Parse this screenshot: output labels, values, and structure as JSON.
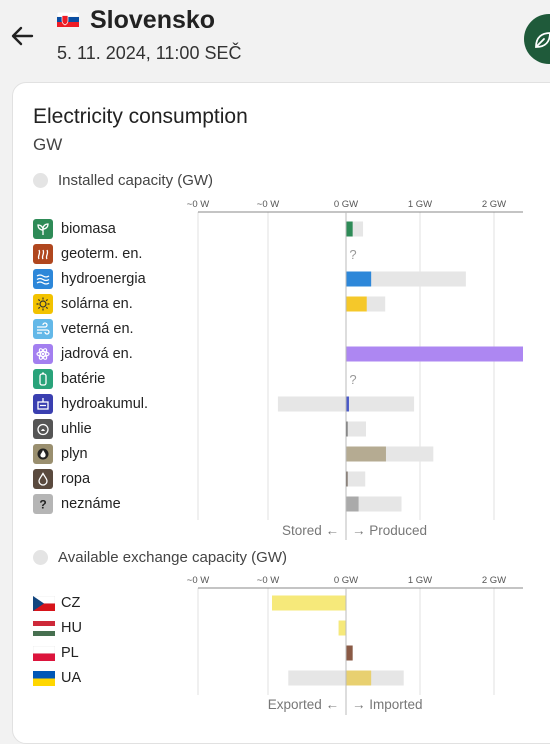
{
  "header": {
    "zone_name": "Slovensko",
    "datetime": "5. 11. 2024, 11:00 SEČ"
  },
  "panel": {
    "title": "Electricity consumption",
    "unit": "GW"
  },
  "production": {
    "section_label": "Installed capacity (GW)",
    "ticks": [
      "~0 W",
      "~0 W",
      "0 GW",
      "1 GW",
      "2 GW"
    ],
    "tick_values": [
      -1,
      -0.5,
      0,
      1,
      2
    ],
    "left_caption": "Stored ←",
    "right_caption": "→ Produced",
    "unknown_mark": "?",
    "rows": [
      {
        "label": "biomasa",
        "icon": "leaf-icon",
        "icon_color": "#2e8b57",
        "bar_color": "#2e8b57",
        "value": 0.09,
        "capacity": 0.23
      },
      {
        "label": "geoterm. en.",
        "icon": "geothermal-icon",
        "icon_color": "#b0471f",
        "bar_color": "#b0471f",
        "value": null,
        "capacity": null
      },
      {
        "label": "hydroenergia",
        "icon": "water-waves-icon",
        "icon_color": "#2d87d9",
        "bar_color": "#2d87d9",
        "value": 0.34,
        "capacity": 1.62
      },
      {
        "label": "solárna en.",
        "icon": "sun-icon",
        "icon_color": "#f2c200",
        "bar_color": "#f5c82a",
        "value": 0.28,
        "capacity": 0.53
      },
      {
        "label": "veterná en.",
        "icon": "wind-icon",
        "icon_color": "#63b8e8",
        "bar_color": "#63b8e8",
        "value": 0,
        "capacity": 0
      },
      {
        "label": "jadrová en.",
        "icon": "atom-icon",
        "icon_color": "#a37ff0",
        "bar_color": "#ad87f2",
        "value": 2.4,
        "capacity": 2.4
      },
      {
        "label": "batérie",
        "icon": "battery-icon",
        "icon_color": "#29a37a",
        "bar_color": "#29a37a",
        "value": null,
        "capacity": null
      },
      {
        "label": "hydroakumul.",
        "icon": "pumped-storage-icon",
        "icon_color": "#3a3fb0",
        "bar_color": "#4a59c7",
        "value": 0.04,
        "capacity": 0.92,
        "storage": 0.92
      },
      {
        "label": "uhlie",
        "icon": "coal-icon",
        "icon_color": "#555555",
        "bar_color": "#555555",
        "value": 0.01,
        "capacity": 0.27
      },
      {
        "label": "plyn",
        "icon": "gas-flame-icon",
        "icon_color": "#9a8f6f",
        "bar_color": "#b5ab92",
        "value": 0.54,
        "capacity": 1.18
      },
      {
        "label": "ropa",
        "icon": "oil-drop-icon",
        "icon_color": "#5a4a3e",
        "bar_color": "#5a4a3e",
        "value": 0.02,
        "capacity": 0.26
      },
      {
        "label": "neznáme",
        "icon": "question-icon",
        "icon_color": "#b5b5b5",
        "bar_color": "#aaaaaa",
        "value": 0.17,
        "capacity": 0.75
      }
    ]
  },
  "exchange": {
    "section_label": "Available exchange capacity (GW)",
    "ticks": [
      "~0 W",
      "~0 W",
      "0 GW",
      "1 GW",
      "2 GW"
    ],
    "tick_values": [
      -1,
      -0.5,
      0,
      1,
      2
    ],
    "left_caption": "Exported ←",
    "right_caption": "→ Imported",
    "rows": [
      {
        "label": "CZ",
        "flag": "czech-flag-icon",
        "bar_color": "#f6e97a",
        "value": -1.0,
        "capacity_min": -1.0,
        "capacity_max": 0
      },
      {
        "label": "HU",
        "flag": "hungary-flag-icon",
        "bar_color": "#f6e97a",
        "value": -0.1,
        "capacity_min": -0.1,
        "capacity_max": 0
      },
      {
        "label": "PL",
        "flag": "poland-flag-icon",
        "bar_color": "#8a5a45",
        "value": 0.09,
        "capacity_min": 0,
        "capacity_max": 0.09
      },
      {
        "label": "UA",
        "flag": "ukraine-flag-icon",
        "bar_color": "#e8d070",
        "value": 0.34,
        "capacity_min": -0.78,
        "capacity_max": 0.78
      }
    ]
  }
}
